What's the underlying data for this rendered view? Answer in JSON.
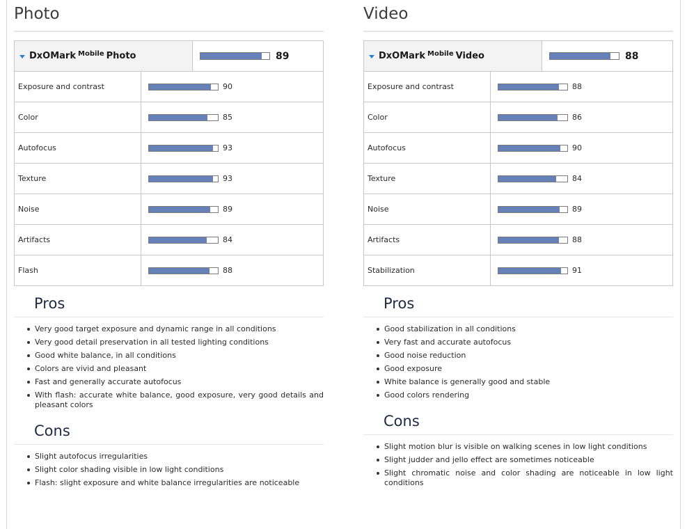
{
  "photo": {
    "heading": "Photo",
    "summary": {
      "brand": "DxOMark",
      "sup": "Mobile",
      "name": "Photo",
      "score": "89",
      "fill": 0.89
    },
    "rows": [
      {
        "label": "Exposure and contrast",
        "score": "90",
        "fill": 0.9
      },
      {
        "label": "Color",
        "score": "85",
        "fill": 0.85
      },
      {
        "label": "Autofocus",
        "score": "93",
        "fill": 0.93
      },
      {
        "label": "Texture",
        "score": "93",
        "fill": 0.93
      },
      {
        "label": "Noise",
        "score": "89",
        "fill": 0.89
      },
      {
        "label": "Artifacts",
        "score": "84",
        "fill": 0.84
      },
      {
        "label": "Flash",
        "score": "88",
        "fill": 0.88
      }
    ],
    "pros_title": "Pros",
    "pros": [
      "Very good target exposure and dynamic range in all conditions",
      "Very good detail preservation in all tested lighting conditions",
      "Good white balance, in all conditions",
      "Colors are vivid and pleasant",
      "Fast and generally accurate autofocus",
      "With flash: accurate white balance, good exposure, very good details and pleasant colors"
    ],
    "cons_title": "Cons",
    "cons": [
      "Slight autofocus irregularities",
      "Slight color shading visible in low light conditions",
      "Flash: slight exposure and white balance irregularities are noticeable"
    ]
  },
  "video": {
    "heading": "Video",
    "summary": {
      "brand": "DxOMark",
      "sup": "Mobile",
      "name": "Video",
      "score": "88",
      "fill": 0.88
    },
    "rows": [
      {
        "label": "Exposure and contrast",
        "score": "88",
        "fill": 0.88
      },
      {
        "label": "Color",
        "score": "86",
        "fill": 0.86
      },
      {
        "label": "Autofocus",
        "score": "90",
        "fill": 0.9
      },
      {
        "label": "Texture",
        "score": "84",
        "fill": 0.84
      },
      {
        "label": "Noise",
        "score": "89",
        "fill": 0.89
      },
      {
        "label": "Artifacts",
        "score": "88",
        "fill": 0.88
      },
      {
        "label": "Stabilization",
        "score": "91",
        "fill": 0.91
      }
    ],
    "pros_title": "Pros",
    "pros": [
      "Good stabilization in all conditions",
      "Very fast and accurate autofocus",
      "Good noise reduction",
      "Good exposure",
      "White balance is generally good and stable",
      "Good colors rendering"
    ],
    "cons_title": "Cons",
    "cons": [
      "Slight motion blur is visible on walking scenes in low light conditions",
      "Slight judder and jello effect are sometimes noticeable",
      "Slight chromatic noise and color shading are noticeable in low light conditions"
    ]
  },
  "colors": {
    "bar_fill": "#6680b8",
    "caret": "#2a7fcf"
  }
}
